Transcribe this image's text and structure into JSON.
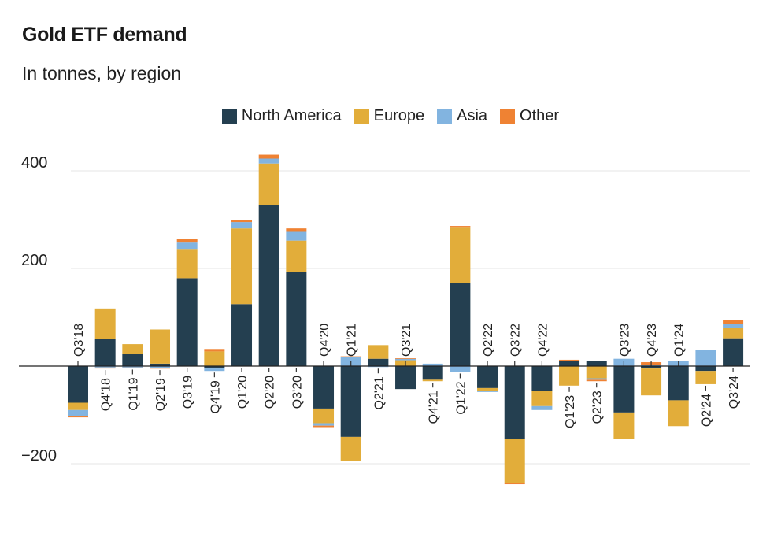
{
  "chart_data": {
    "type": "bar",
    "stacked": true,
    "title": "Gold ETF demand",
    "subtitle": "In tonnes, by region",
    "xlabel": "",
    "ylabel": "",
    "ylim": [
      -240,
      440
    ],
    "yticks": [
      400,
      200,
      -200
    ],
    "ytick_labels": [
      "400",
      "200",
      "−200"
    ],
    "grid": true,
    "legend_position": "top-center",
    "categories": [
      "Q3'18",
      "Q4'18",
      "Q1'19",
      "Q2'19",
      "Q3'19",
      "Q4'19",
      "Q1'20",
      "Q2'20",
      "Q3'20",
      "Q4'20",
      "Q1'21",
      "Q2'21",
      "Q3'21",
      "Q4'21",
      "Q1'22",
      "Q2'22",
      "Q3'22",
      "Q4'22",
      "Q1'23",
      "Q2'23",
      "Q3'23",
      "Q4'23",
      "Q1'24",
      "Q2'24",
      "Q3'24"
    ],
    "series": [
      {
        "name": "North America",
        "color": "#243f50",
        "values": [
          -75,
          55,
          25,
          5,
          180,
          -5,
          127,
          330,
          192,
          -87,
          -145,
          15,
          -47,
          -28,
          170,
          -45,
          -150,
          -50,
          10,
          10,
          -95,
          -5,
          -70,
          -10,
          57
        ]
      },
      {
        "name": "Europe",
        "color": "#e2ad3a",
        "values": [
          -15,
          63,
          20,
          70,
          60,
          30,
          155,
          85,
          65,
          -30,
          -50,
          28,
          12,
          -3,
          115,
          -5,
          -90,
          -32,
          -40,
          -25,
          -55,
          -55,
          -53,
          -27,
          22
        ]
      },
      {
        "name": "Asia",
        "color": "#82b4e0",
        "values": [
          -12,
          -3,
          -3,
          -4,
          13,
          -5,
          13,
          10,
          18,
          -5,
          18,
          -2,
          3,
          5,
          -12,
          -3,
          0,
          -8,
          0,
          -3,
          15,
          3,
          10,
          33,
          8
        ]
      },
      {
        "name": "Other",
        "color": "#ef8233",
        "values": [
          -3,
          -2,
          -1,
          -1,
          7,
          5,
          5,
          8,
          7,
          -3,
          2,
          0,
          1,
          0,
          2,
          0,
          -2,
          0,
          3,
          -3,
          0,
          5,
          0,
          0,
          7
        ]
      }
    ]
  }
}
